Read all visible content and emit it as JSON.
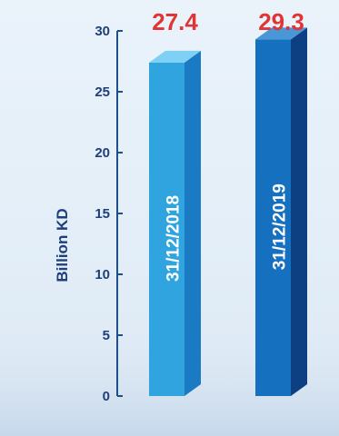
{
  "chart_data": {
    "type": "bar",
    "categories": [
      "31/12/2018",
      "31/12/2019"
    ],
    "values": [
      27.4,
      29.3
    ],
    "value_labels": [
      "27.4",
      "29.3"
    ],
    "title": "",
    "xlabel": "",
    "ylabel": "Billion KD",
    "ylim": [
      0,
      30
    ],
    "yticks": [
      "0",
      "5",
      "10",
      "15",
      "20",
      "25",
      "30"
    ],
    "grid": false,
    "legend": "none",
    "colors": {
      "axis": "#1e4f8a",
      "tick_text": "#1e3f7a",
      "value_text": "#e03535",
      "bar_2018_front": "#2fa4df",
      "bar_2018_side": "#1a7bc4",
      "bar_2018_top": "#7fd0f5",
      "bar_2019_front": "#1570bf",
      "bar_2019_side": "#0d3f83",
      "bar_2019_top": "#4a97d8"
    }
  }
}
